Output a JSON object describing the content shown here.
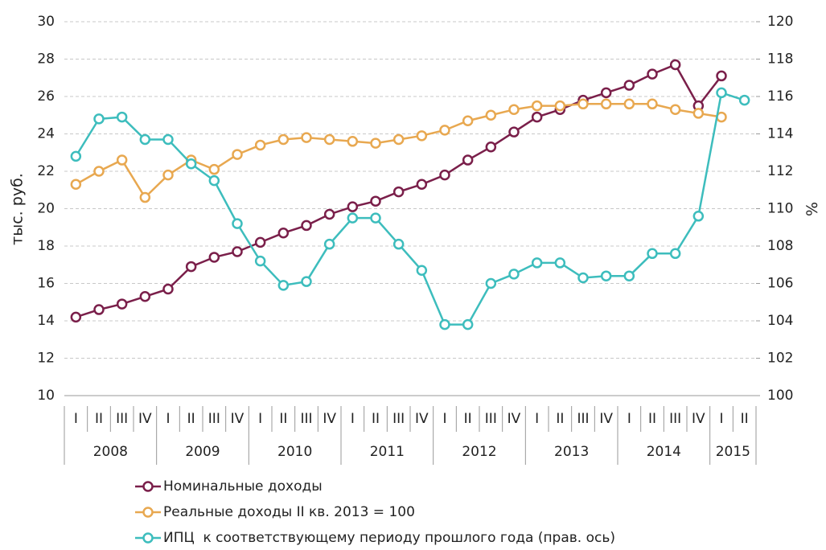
{
  "chart_data": {
    "type": "line",
    "ylabel": "тыс. руб.",
    "y2label": "%",
    "categories": [
      "I",
      "II",
      "III",
      "IV",
      "I",
      "II",
      "III",
      "IV",
      "I",
      "II",
      "III",
      "IV",
      "I",
      "II",
      "III",
      "IV",
      "I",
      "II",
      "III",
      "IV",
      "I",
      "II",
      "III",
      "IV",
      "I",
      "II",
      "III",
      "IV",
      "I",
      "II"
    ],
    "years": [
      "2008",
      "2009",
      "2010",
      "2011",
      "2012",
      "2013",
      "2014",
      "2015"
    ],
    "ylim": [
      10,
      30
    ],
    "yticks": [
      10,
      12,
      14,
      16,
      18,
      20,
      22,
      24,
      26,
      28,
      30
    ],
    "y2lim": [
      100,
      120
    ],
    "y2ticks": [
      100,
      102,
      104,
      106,
      108,
      110,
      112,
      114,
      116,
      118,
      120
    ],
    "grid": true,
    "series": [
      {
        "name": "Номинальные доходы",
        "color": "#7a1f4a",
        "values": [
          14.2,
          14.6,
          14.9,
          15.3,
          15.7,
          16.9,
          17.4,
          17.7,
          18.2,
          18.7,
          19.1,
          19.7,
          20.1,
          20.4,
          20.9,
          21.3,
          21.8,
          22.6,
          23.3,
          24.1,
          24.9,
          25.3,
          25.8,
          26.2,
          26.6,
          27.2,
          27.7,
          25.5,
          27.1,
          null
        ]
      },
      {
        "name": "Реальные доходы II кв. 2013 = 100",
        "color": "#e8a850",
        "values": [
          21.3,
          22.0,
          22.6,
          20.6,
          21.8,
          22.6,
          22.1,
          22.9,
          23.4,
          23.7,
          23.8,
          23.7,
          23.6,
          23.5,
          23.7,
          23.9,
          24.2,
          24.7,
          25.0,
          25.3,
          25.5,
          25.5,
          25.6,
          25.6,
          25.6,
          25.6,
          25.3,
          25.1,
          24.9,
          null
        ]
      },
      {
        "name": "ИПЦ  к соответствующему периоду прошлого года (прав. ось)",
        "color": "#3dbdbd",
        "axis": "y2",
        "values": [
          112.8,
          114.8,
          114.9,
          113.7,
          113.7,
          112.4,
          111.5,
          109.2,
          107.2,
          105.9,
          106.1,
          108.1,
          109.5,
          109.5,
          108.1,
          106.7,
          103.8,
          103.8,
          106.0,
          106.5,
          107.1,
          107.1,
          106.3,
          106.4,
          106.4,
          107.6,
          107.6,
          109.6,
          116.2,
          115.8
        ]
      }
    ]
  }
}
